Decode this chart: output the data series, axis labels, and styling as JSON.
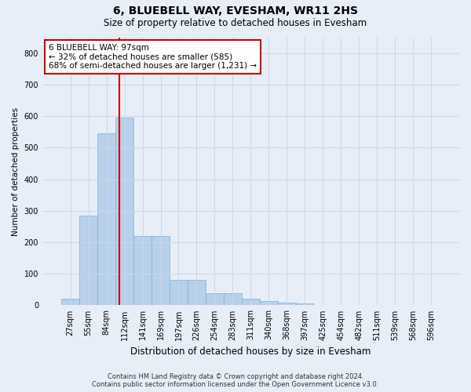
{
  "title": "6, BLUEBELL WAY, EVESHAM, WR11 2HS",
  "subtitle": "Size of property relative to detached houses in Evesham",
  "xlabel": "Distribution of detached houses by size in Evesham",
  "ylabel": "Number of detached properties",
  "footer_line1": "Contains HM Land Registry data © Crown copyright and database right 2024.",
  "footer_line2": "Contains public sector information licensed under the Open Government Licence v3.0.",
  "bar_labels": [
    "27sqm",
    "55sqm",
    "84sqm",
    "112sqm",
    "141sqm",
    "169sqm",
    "197sqm",
    "226sqm",
    "254sqm",
    "283sqm",
    "311sqm",
    "340sqm",
    "368sqm",
    "397sqm",
    "425sqm",
    "454sqm",
    "482sqm",
    "511sqm",
    "539sqm",
    "568sqm",
    "596sqm"
  ],
  "bar_values": [
    22,
    285,
    545,
    595,
    220,
    220,
    80,
    80,
    38,
    38,
    22,
    13,
    8,
    5,
    0,
    0,
    0,
    0,
    0,
    0,
    0
  ],
  "ylim": [
    0,
    850
  ],
  "yticks": [
    0,
    100,
    200,
    300,
    400,
    500,
    600,
    700,
    800
  ],
  "bar_color": "#b8d0ea",
  "bar_edge_color": "#7bafd4",
  "property_line_x": 2.72,
  "annotation_label": "6 BLUEBELL WAY: 97sqm",
  "annotation_line1": "← 32% of detached houses are smaller (585)",
  "annotation_line2": "68% of semi-detached houses are larger (1,231) →",
  "annotation_box_color": "#ffffff",
  "annotation_box_edge": "#cc0000",
  "property_line_color": "#cc0000",
  "grid_color": "#ccd6e8",
  "background_color": "#e8eef8",
  "plot_bg_color": "#e8eef8",
  "title_fontsize": 10,
  "subtitle_fontsize": 8.5,
  "xlabel_fontsize": 8.5,
  "ylabel_fontsize": 7.5,
  "tick_fontsize": 7,
  "annotation_fontsize": 7.5,
  "footer_fontsize": 6
}
